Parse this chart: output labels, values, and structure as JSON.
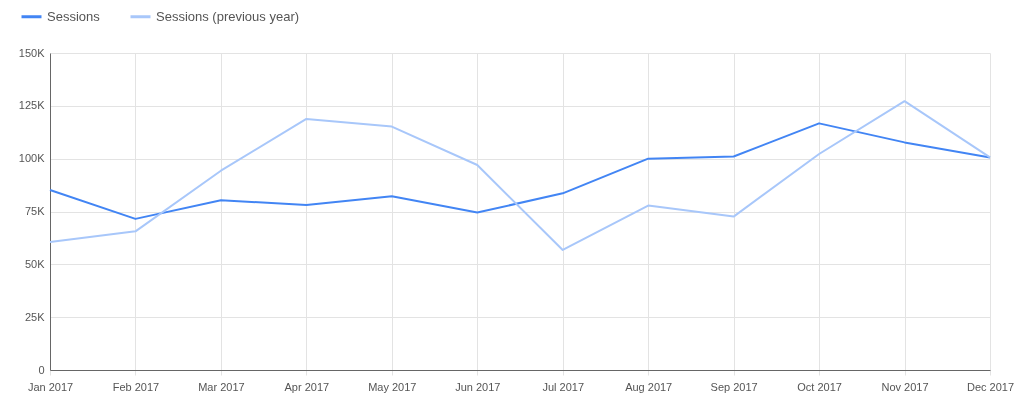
{
  "chart_data": {
    "type": "line",
    "categories": [
      "Jan 2017",
      "Feb 2017",
      "Mar 2017",
      "Apr 2017",
      "May 2017",
      "Jun 2017",
      "Jul 2017",
      "Aug 2017",
      "Sep 2017",
      "Oct 2017",
      "Nov 2017",
      "Dec 2017"
    ],
    "series": [
      {
        "name": "Sessions",
        "color": "#4285f4",
        "values": [
          85200,
          71500,
          80300,
          78100,
          82200,
          74500,
          83600,
          100000,
          101000,
          116700,
          107700,
          100600
        ]
      },
      {
        "name": "Sessions (previous year)",
        "color": "#a8c7fa",
        "values": [
          60600,
          65600,
          94300,
          118800,
          115200,
          97000,
          56800,
          77800,
          72600,
          102200,
          127200,
          100600
        ]
      }
    ],
    "ylim": [
      0,
      150000
    ],
    "yticks": [
      0,
      {
        "value": 25000,
        "label": "25K"
      },
      {
        "value": 50000,
        "label": "50K"
      },
      {
        "value": 75000,
        "label": "75K"
      },
      {
        "value": 100000,
        "label": "100K"
      },
      {
        "value": 125000,
        "label": "125K"
      },
      {
        "value": 150000,
        "label": "150K"
      }
    ],
    "grid": true,
    "legend": "top left"
  }
}
